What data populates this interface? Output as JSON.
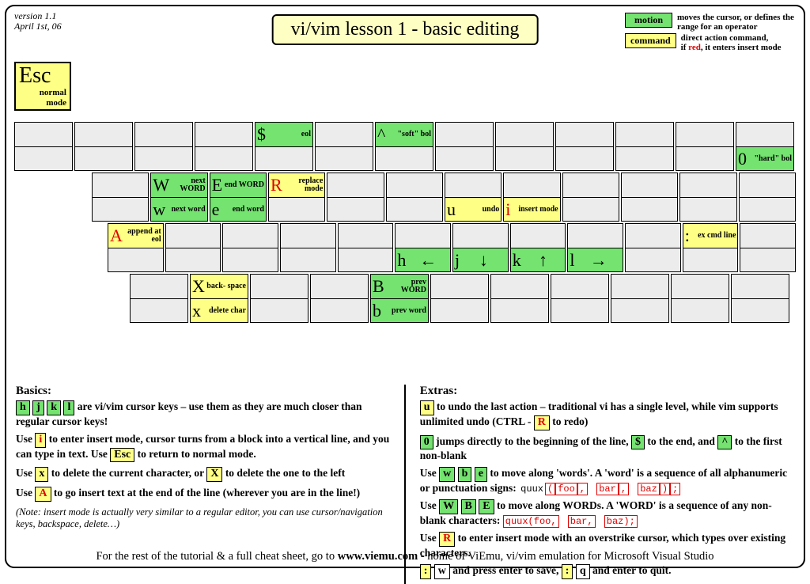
{
  "meta": {
    "version": "version 1.1",
    "date": "April 1st, 06"
  },
  "title": "vi/vim lesson 1 - basic editing",
  "legend": {
    "motion": {
      "chip": "motion",
      "text": "moves the cursor, or defines the range for an operator",
      "color": "#74e370"
    },
    "command": {
      "chip": "command",
      "text_a": "direct action command,",
      "text_b": "if ",
      "text_red": "red",
      "text_c": ", it enters insert mode",
      "color": "#feff85"
    }
  },
  "esc": {
    "big": "Esc",
    "sub1": "normal",
    "sub2": "mode"
  },
  "colors": {
    "motion": "#74e370",
    "command": "#feff85",
    "blank": "#ececec",
    "border": "#000000",
    "red": "#e00000"
  },
  "rows": {
    "r1": [
      {
        "top": "blank",
        "bot": "blank"
      },
      {
        "top": "blank",
        "bot": "blank"
      },
      {
        "top": "blank",
        "bot": "blank"
      },
      {
        "top": "blank",
        "bot": "blank"
      },
      {
        "top": {
          "bg": "green",
          "letter": "$",
          "desc": "eol"
        },
        "bot": "blank"
      },
      {
        "top": "blank",
        "bot": "blank"
      },
      {
        "top": {
          "bg": "green",
          "letter": "^",
          "desc": "\"soft\" bol"
        },
        "bot": "blank"
      },
      {
        "top": "blank",
        "bot": "blank"
      },
      {
        "top": "blank",
        "bot": "blank"
      },
      {
        "top": "blank",
        "bot": "blank"
      },
      {
        "top": "blank",
        "bot": "blank"
      },
      {
        "top": "blank",
        "bot": "blank"
      },
      {
        "top": "blank",
        "bot": {
          "bg": "green",
          "letter": "0",
          "desc": "\"hard\" bol"
        }
      }
    ],
    "r2": [
      {
        "top": "blank",
        "bot": "blank"
      },
      {
        "top": {
          "bg": "green",
          "letter": "W",
          "desc": "next WORD"
        },
        "bot": {
          "bg": "green",
          "letter": "w",
          "desc": "next word"
        }
      },
      {
        "top": {
          "bg": "green",
          "letter": "E",
          "desc": "end WORD"
        },
        "bot": {
          "bg": "green",
          "letter": "e",
          "desc": "end word"
        }
      },
      {
        "top": {
          "bg": "yellow",
          "letter": "R",
          "red": true,
          "desc": "replace mode"
        },
        "bot": "blank"
      },
      {
        "top": "blank",
        "bot": "blank"
      },
      {
        "top": "blank",
        "bot": "blank"
      },
      {
        "top": "blank",
        "bot": {
          "bg": "yellow",
          "letter": "u",
          "desc": "undo"
        }
      },
      {
        "top": "blank",
        "bot": {
          "bg": "yellow",
          "letter": "i",
          "red": true,
          "desc": "insert mode"
        }
      },
      {
        "top": "blank",
        "bot": "blank"
      },
      {
        "top": "blank",
        "bot": "blank"
      },
      {
        "top": "blank",
        "bot": "blank"
      },
      {
        "top": "blank",
        "bot": "blank"
      }
    ],
    "r3": [
      {
        "top": {
          "bg": "yellow",
          "letter": "A",
          "red": true,
          "desc": "append at eol"
        },
        "bot": "blank"
      },
      {
        "top": "blank",
        "bot": "blank"
      },
      {
        "top": "blank",
        "bot": "blank"
      },
      {
        "top": "blank",
        "bot": "blank"
      },
      {
        "top": "blank",
        "bot": "blank"
      },
      {
        "top": "blank",
        "bot": {
          "bg": "green",
          "letter": "h",
          "arrow": "←"
        }
      },
      {
        "top": "blank",
        "bot": {
          "bg": "green",
          "letter": "j",
          "arrow": "↓"
        }
      },
      {
        "top": "blank",
        "bot": {
          "bg": "green",
          "letter": "k",
          "arrow": "↑"
        }
      },
      {
        "top": "blank",
        "bot": {
          "bg": "green",
          "letter": "l",
          "arrow": "→"
        }
      },
      {
        "top": "blank",
        "bot": "blank"
      },
      {
        "top": {
          "bg": "yellow",
          "letter": ":",
          "desc": "ex cmd line"
        },
        "bot": "blank"
      },
      {
        "top": "blank",
        "bot": "blank"
      }
    ],
    "r4": [
      {
        "top": "blank",
        "bot": "blank"
      },
      {
        "top": {
          "bg": "yellow",
          "letter": "X",
          "desc": "back- space"
        },
        "bot": {
          "bg": "yellow",
          "letter": "x",
          "desc": "delete char"
        }
      },
      {
        "top": "blank",
        "bot": "blank"
      },
      {
        "top": "blank",
        "bot": "blank"
      },
      {
        "top": {
          "bg": "green",
          "letter": "B",
          "desc": "prev WORD"
        },
        "bot": {
          "bg": "green",
          "letter": "b",
          "desc": "prev word"
        }
      },
      {
        "top": "blank",
        "bot": "blank"
      },
      {
        "top": "blank",
        "bot": "blank"
      },
      {
        "top": "blank",
        "bot": "blank"
      },
      {
        "top": "blank",
        "bot": "blank"
      },
      {
        "top": "blank",
        "bot": "blank"
      },
      {
        "top": "blank",
        "bot": "blank"
      }
    ]
  },
  "basics": {
    "heading": "Basics:",
    "p1_chips": [
      "h",
      "j",
      "k",
      "l"
    ],
    "p1_text": " are vi/vim cursor keys – use them as they are  much closer than regular cursor keys!",
    "p2_a": "Use ",
    "p2_chip_i": "i",
    "p2_b": " to enter insert mode, cursor turns from a block into a vertical line, and you can type in text. Use ",
    "p2_chip_esc": "Esc",
    "p2_c": "  to  return to normal mode.",
    "p3_a": "Use ",
    "p3_chip_x": "x",
    "p3_b": " to delete the current character, or ",
    "p3_chip_X": "X",
    "p3_c": "  to delete the one to the left",
    "p4_a": "Use ",
    "p4_chip_A": "A",
    "p4_b": " to go insert text at the end of the line (wherever you are in the line!)",
    "note": " (Note: insert mode is actually very similar to a regular editor, you can use cursor/navigation keys, backspace,  delete…)"
  },
  "extras": {
    "heading": "Extras:",
    "p1_a": "",
    "p1_chip_u": "u",
    "p1_b": " to undo the last action – traditional vi has a single level, while vim supports unlimited undo (CTRL - ",
    "p1_chip_R": "R",
    "p1_c": " to redo)",
    "p2_a": "",
    "p2_chip_0": "0",
    "p2_b": " jumps directly to the beginning of the line, ",
    "p2_chip_dollar": "$",
    "p2_c": " to the end, and ",
    "p2_chip_caret": "^",
    "p2_d": " to the first non-blank",
    "p3_a": "Use ",
    "p3_chips": [
      "w",
      "b",
      "e"
    ],
    "p3_b": " to move along 'words'. A 'word' is a sequence of all alphanumeric or punctuation signs:   ",
    "p3_code_plain": "quux",
    "p3_codes": [
      "(",
      "foo",
      ",",
      " ",
      "bar",
      ",",
      " ",
      "baz",
      ")",
      ";"
    ],
    "p4_a": "Use ",
    "p4_chips": [
      "W",
      "B",
      "E"
    ],
    "p4_b": " to move along WORDs. A 'WORD' is a sequence of any non-blank characters:   ",
    "p4_codes": [
      "quux(foo,",
      " ",
      "bar,",
      " ",
      "baz);"
    ],
    "p5_a": "Use ",
    "p5_chip_R": "R",
    "p5_b": " to enter insert mode with an overstrike cursor, which types over existing characters.",
    "p6_chip_colon1": ":",
    "p6_chip_w": "w",
    "p6_a": " and press enter to save, ",
    "p6_chip_colon2": ":",
    "p6_chip_q": "q",
    "p6_b": " and enter to quit."
  },
  "footer_a": "For the rest of the tutorial & a full cheat sheet, go to ",
  "footer_b": "www.viemu.com",
  "footer_c": " - home of ViEmu, vi/vim emulation for Microsoft Visual Studio"
}
